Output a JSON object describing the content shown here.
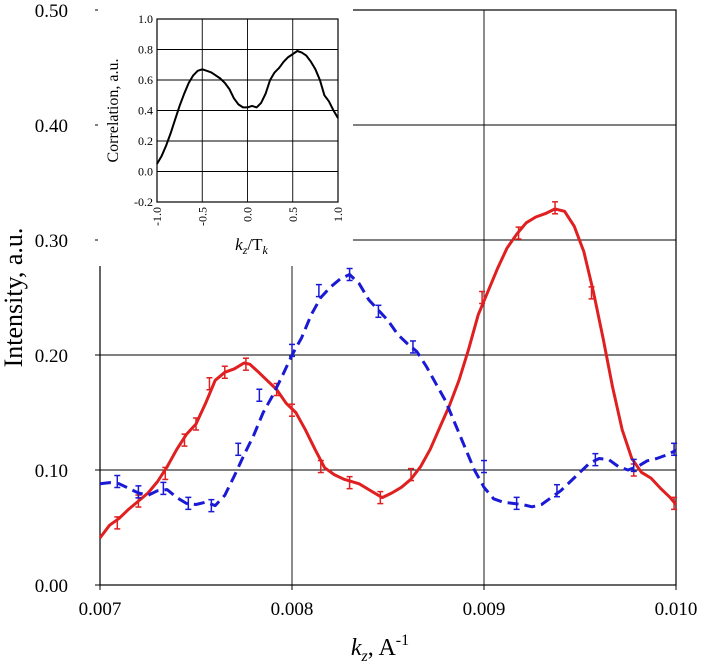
{
  "chart_data": [
    {
      "type": "line",
      "xlabel_var": "k",
      "xlabel_sub": "z",
      "xlabel_rest": ", A",
      "xlabel_sup": "-1",
      "ylabel": "Intensity, a.u.",
      "xlim": [
        0.007,
        0.01
      ],
      "ylim": [
        0.0,
        0.5
      ],
      "xticks": [
        "0.007",
        "0.008",
        "0.009",
        "0.010"
      ],
      "yticks": [
        "0.00",
        "0.10",
        "0.20",
        "0.30",
        "0.40",
        "0.50"
      ],
      "grid": true,
      "series": [
        {
          "color": "#e02020",
          "style": "solid",
          "points": [
            [
              0.007,
              0.041
            ],
            [
              0.00705,
              0.052
            ],
            [
              0.0071,
              0.058
            ],
            [
              0.00715,
              0.066
            ],
            [
              0.0072,
              0.073
            ],
            [
              0.00725,
              0.08
            ],
            [
              0.0073,
              0.09
            ],
            [
              0.00735,
              0.103
            ],
            [
              0.0074,
              0.118
            ],
            [
              0.00745,
              0.131
            ],
            [
              0.0075,
              0.14
            ],
            [
              0.00755,
              0.158
            ],
            [
              0.0076,
              0.178
            ],
            [
              0.00765,
              0.185
            ],
            [
              0.0077,
              0.188
            ],
            [
              0.00775,
              0.193
            ],
            [
              0.00778,
              0.192
            ],
            [
              0.00782,
              0.186
            ],
            [
              0.00787,
              0.178
            ],
            [
              0.00792,
              0.17
            ],
            [
              0.00797,
              0.158
            ],
            [
              0.00802,
              0.15
            ],
            [
              0.00807,
              0.135
            ],
            [
              0.00812,
              0.118
            ],
            [
              0.00817,
              0.102
            ],
            [
              0.00822,
              0.096
            ],
            [
              0.00827,
              0.092
            ],
            [
              0.00835,
              0.088
            ],
            [
              0.00842,
              0.081
            ],
            [
              0.00847,
              0.076
            ],
            [
              0.00852,
              0.08
            ],
            [
              0.00857,
              0.085
            ],
            [
              0.00862,
              0.092
            ],
            [
              0.00867,
              0.103
            ],
            [
              0.00872,
              0.118
            ],
            [
              0.00877,
              0.137
            ],
            [
              0.00882,
              0.156
            ],
            [
              0.00887,
              0.178
            ],
            [
              0.00892,
              0.205
            ],
            [
              0.00897,
              0.235
            ],
            [
              0.00902,
              0.255
            ],
            [
              0.00907,
              0.275
            ],
            [
              0.00912,
              0.293
            ],
            [
              0.00917,
              0.305
            ],
            [
              0.00922,
              0.315
            ],
            [
              0.00927,
              0.32
            ],
            [
              0.00932,
              0.323
            ],
            [
              0.00937,
              0.327
            ],
            [
              0.00942,
              0.325
            ],
            [
              0.00947,
              0.312
            ],
            [
              0.00952,
              0.29
            ],
            [
              0.00957,
              0.255
            ],
            [
              0.00962,
              0.215
            ],
            [
              0.00967,
              0.172
            ],
            [
              0.00972,
              0.135
            ],
            [
              0.00977,
              0.11
            ],
            [
              0.00982,
              0.098
            ],
            [
              0.00987,
              0.093
            ],
            [
              0.00992,
              0.084
            ],
            [
              0.00997,
              0.076
            ],
            [
              0.01,
              0.07
            ]
          ],
          "errorbars": [
            [
              0.00709,
              0.054
            ],
            [
              0.0072,
              0.073
            ],
            [
              0.00734,
              0.097
            ],
            [
              0.00744,
              0.126
            ],
            [
              0.0075,
              0.14
            ],
            [
              0.00757,
              0.175
            ],
            [
              0.00765,
              0.185
            ],
            [
              0.00776,
              0.192
            ],
            [
              0.00792,
              0.17
            ],
            [
              0.008,
              0.152
            ],
            [
              0.00815,
              0.103
            ],
            [
              0.0083,
              0.089
            ],
            [
              0.00846,
              0.076
            ],
            [
              0.00862,
              0.096
            ],
            [
              0.00899,
              0.25
            ],
            [
              0.00918,
              0.306
            ],
            [
              0.00937,
              0.328
            ],
            [
              0.00956,
              0.254
            ],
            [
              0.00978,
              0.1
            ],
            [
              0.00999,
              0.071
            ]
          ]
        },
        {
          "color": "#1a1ad6",
          "style": "dashed",
          "points": [
            [
              0.007,
              0.088
            ],
            [
              0.00705,
              0.089
            ],
            [
              0.0071,
              0.088
            ],
            [
              0.00715,
              0.084
            ],
            [
              0.0072,
              0.08
            ],
            [
              0.00725,
              0.078
            ],
            [
              0.0073,
              0.082
            ],
            [
              0.00735,
              0.083
            ],
            [
              0.0074,
              0.076
            ],
            [
              0.00745,
              0.071
            ],
            [
              0.0075,
              0.07
            ],
            [
              0.00755,
              0.072
            ],
            [
              0.0076,
              0.069
            ],
            [
              0.00765,
              0.078
            ],
            [
              0.0077,
              0.095
            ],
            [
              0.00775,
              0.113
            ],
            [
              0.0078,
              0.13
            ],
            [
              0.00785,
              0.15
            ],
            [
              0.0079,
              0.165
            ],
            [
              0.00795,
              0.182
            ],
            [
              0.008,
              0.2
            ],
            [
              0.00805,
              0.215
            ],
            [
              0.0081,
              0.235
            ],
            [
              0.00815,
              0.25
            ],
            [
              0.0082,
              0.259
            ],
            [
              0.00825,
              0.266
            ],
            [
              0.0083,
              0.27
            ],
            [
              0.00835,
              0.262
            ],
            [
              0.0084,
              0.248
            ],
            [
              0.00845,
              0.239
            ],
            [
              0.0085,
              0.23
            ],
            [
              0.00855,
              0.218
            ],
            [
              0.0086,
              0.21
            ],
            [
              0.00865,
              0.203
            ],
            [
              0.0087,
              0.19
            ],
            [
              0.00875,
              0.175
            ],
            [
              0.0088,
              0.16
            ],
            [
              0.00885,
              0.14
            ],
            [
              0.0089,
              0.12
            ],
            [
              0.00895,
              0.1
            ],
            [
              0.009,
              0.085
            ],
            [
              0.00905,
              0.075
            ],
            [
              0.0091,
              0.072
            ],
            [
              0.00915,
              0.071
            ],
            [
              0.0092,
              0.07
            ],
            [
              0.00925,
              0.068
            ],
            [
              0.0093,
              0.07
            ],
            [
              0.00935,
              0.076
            ],
            [
              0.0094,
              0.082
            ],
            [
              0.00945,
              0.09
            ],
            [
              0.0095,
              0.098
            ],
            [
              0.00955,
              0.106
            ],
            [
              0.0096,
              0.11
            ],
            [
              0.00965,
              0.109
            ],
            [
              0.0097,
              0.103
            ],
            [
              0.00975,
              0.1
            ],
            [
              0.0098,
              0.103
            ],
            [
              0.00985,
              0.108
            ],
            [
              0.0099,
              0.11
            ],
            [
              0.00995,
              0.113
            ],
            [
              0.01,
              0.117
            ]
          ],
          "errorbars": [
            [
              0.00709,
              0.09
            ],
            [
              0.0072,
              0.081
            ],
            [
              0.00733,
              0.084
            ],
            [
              0.00746,
              0.071
            ],
            [
              0.00758,
              0.069
            ],
            [
              0.00772,
              0.118
            ],
            [
              0.00783,
              0.165
            ],
            [
              0.008,
              0.204
            ],
            [
              0.00814,
              0.256
            ],
            [
              0.0083,
              0.27
            ],
            [
              0.00845,
              0.238
            ],
            [
              0.00863,
              0.207
            ],
            [
              0.009,
              0.103
            ],
            [
              0.00917,
              0.071
            ],
            [
              0.00938,
              0.082
            ],
            [
              0.00958,
              0.109
            ],
            [
              0.00978,
              0.104
            ],
            [
              0.00999,
              0.118
            ]
          ]
        }
      ]
    },
    {
      "type": "line",
      "xlabel_var": "k",
      "xlabel_sub": "z",
      "xlabel_rest": "/T",
      "xlabel_sub2": "k",
      "ylabel": "Correlation, a.u.",
      "xlim": [
        -1.0,
        1.0
      ],
      "ylim": [
        -0.2,
        1.0
      ],
      "xticks": [
        "-1.0",
        "-0.5",
        "0.0",
        "0.5",
        "1.0"
      ],
      "yticks": [
        "-0.2",
        "0.0",
        "0.2",
        "0.4",
        "0.6",
        "0.8",
        "1.0"
      ],
      "grid": true,
      "series": [
        {
          "color": "#000000",
          "style": "solid",
          "points": [
            [
              -1.0,
              0.05
            ],
            [
              -0.95,
              0.1
            ],
            [
              -0.9,
              0.17
            ],
            [
              -0.85,
              0.25
            ],
            [
              -0.8,
              0.34
            ],
            [
              -0.75,
              0.43
            ],
            [
              -0.7,
              0.51
            ],
            [
              -0.65,
              0.58
            ],
            [
              -0.6,
              0.63
            ],
            [
              -0.55,
              0.66
            ],
            [
              -0.5,
              0.67
            ],
            [
              -0.45,
              0.66
            ],
            [
              -0.4,
              0.65
            ],
            [
              -0.35,
              0.63
            ],
            [
              -0.3,
              0.61
            ],
            [
              -0.25,
              0.58
            ],
            [
              -0.2,
              0.54
            ],
            [
              -0.15,
              0.48
            ],
            [
              -0.1,
              0.44
            ],
            [
              -0.05,
              0.42
            ],
            [
              0.0,
              0.42
            ],
            [
              0.05,
              0.43
            ],
            [
              0.1,
              0.42
            ],
            [
              0.15,
              0.45
            ],
            [
              0.2,
              0.51
            ],
            [
              0.25,
              0.6
            ],
            [
              0.3,
              0.65
            ],
            [
              0.35,
              0.68
            ],
            [
              0.4,
              0.72
            ],
            [
              0.45,
              0.75
            ],
            [
              0.5,
              0.77
            ],
            [
              0.55,
              0.79
            ],
            [
              0.6,
              0.78
            ],
            [
              0.65,
              0.76
            ],
            [
              0.7,
              0.72
            ],
            [
              0.75,
              0.67
            ],
            [
              0.8,
              0.6
            ],
            [
              0.85,
              0.5
            ],
            [
              0.9,
              0.46
            ],
            [
              0.95,
              0.4
            ],
            [
              1.0,
              0.35
            ]
          ]
        }
      ]
    }
  ]
}
